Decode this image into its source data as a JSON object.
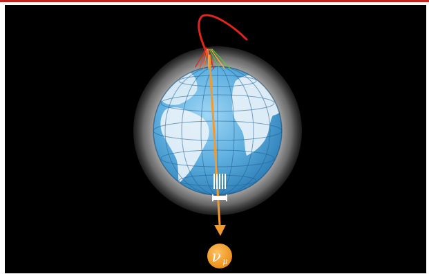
{
  "diagram": {
    "particle_symbol": "ν",
    "particle_subscript": "μ",
    "colors": {
      "background": "#000000",
      "frame_accent": "#c8231e",
      "ocean": "#5fb0e0",
      "land": "#e8f2f8",
      "atmosphere": "#9a9a9a",
      "track": "#f39a2c",
      "shower_primary": "#e1251b",
      "detector": "#ffffff"
    },
    "icons": [
      "earth-globe",
      "cosmic-ray-shower",
      "neutrino-track-arrow",
      "detector-array",
      "neutrino-badge"
    ]
  }
}
